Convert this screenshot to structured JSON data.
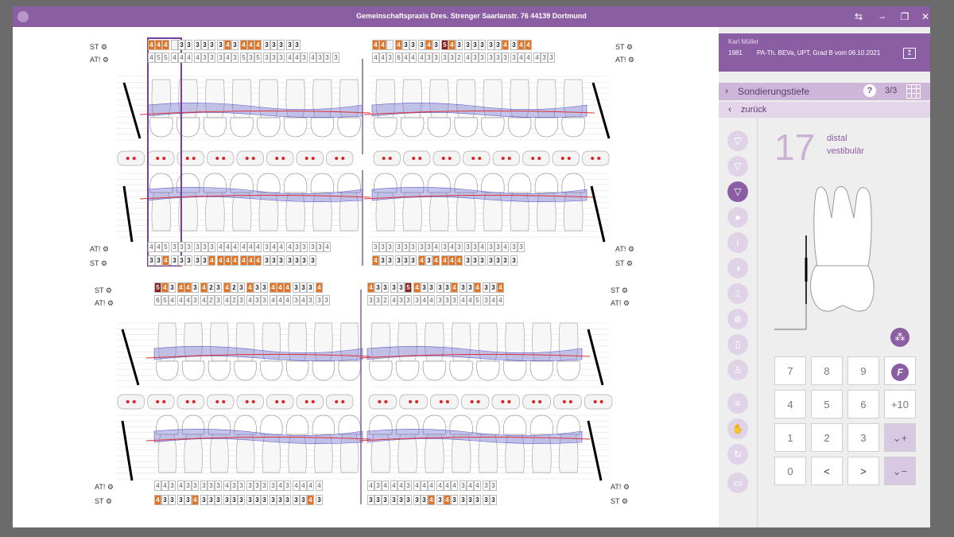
{
  "titlebar": {
    "title": "Gemeinschaftspraxis Dres. Strenger Saarlanstr. 76 44139 Dortmund",
    "colors": {
      "accent": "#8b5ea3"
    },
    "icons": [
      "monitor-switch-icon",
      "minimize-icon",
      "restore-icon",
      "close-icon"
    ]
  },
  "chart": {
    "labels": {
      "st": "ST",
      "at": "AT!"
    },
    "upper": {
      "st_values": [
        "4",
        "4",
        "4",
        "",
        "3",
        "3",
        "3",
        "3",
        "3",
        "3",
        "4",
        "3",
        "4",
        "4",
        "4",
        "3",
        "3",
        "3",
        "3",
        "3",
        "4",
        "4",
        "",
        "4",
        "3",
        "3",
        "3",
        "4",
        "3",
        "5",
        "4",
        "3",
        "3",
        "3",
        "3",
        "3",
        "3",
        "4",
        "3",
        "4",
        "4"
      ],
      "at_values": [
        "4",
        "5",
        "5",
        "4",
        "4",
        "4",
        "4",
        "3",
        "3",
        "3",
        "4",
        "3",
        "5",
        "3",
        "5",
        "3",
        "3",
        "3",
        "4",
        "4",
        "3",
        "4",
        "3",
        "3",
        "3",
        "4",
        "4",
        "3",
        "6",
        "4",
        "4",
        "4",
        "3",
        "3",
        "3",
        "3",
        "2",
        "4",
        "3",
        "3",
        "3",
        "3",
        "3",
        "3",
        "4",
        "4",
        "4",
        "3",
        "3"
      ]
    },
    "lower_upper_rows": {
      "at_values": [
        "4",
        "4",
        "5",
        "3",
        "3",
        "3",
        "3",
        "3",
        "3",
        "4",
        "4",
        "4",
        "4",
        "4",
        "4",
        "3",
        "4",
        "4",
        "4",
        "3",
        "3",
        "3",
        "3",
        "4",
        "3",
        "3",
        "3",
        "3",
        "3",
        "3",
        "3",
        "3",
        "4",
        "3",
        "4",
        "3",
        "3",
        "3",
        "4",
        "3",
        "3",
        "4",
        "3",
        "3"
      ],
      "st_values": [
        "3",
        "3",
        "4",
        "3",
        "3",
        "3",
        "3",
        "3",
        "4",
        "4",
        "4",
        "4",
        "4",
        "4",
        "4",
        "3",
        "3",
        "3",
        "3",
        "3",
        "3",
        "3",
        "4",
        "3",
        "3",
        "3",
        "3",
        "3",
        "4",
        "3",
        "4",
        "4",
        "4",
        "4",
        "3",
        "3",
        "3",
        "3",
        "3",
        "3",
        "3"
      ]
    },
    "lower": {
      "st_values": [
        "5",
        "4",
        "3",
        "4",
        "4",
        "3",
        "4",
        "2",
        "3",
        "4",
        "2",
        "3",
        "4",
        "3",
        "3",
        "4",
        "4",
        "4",
        "3",
        "3",
        "3",
        "4",
        "4",
        "3",
        "3",
        "3",
        "3",
        "5",
        "4",
        "3",
        "3",
        "3",
        "3",
        "4",
        "3",
        "3",
        "4",
        "3",
        "3",
        "4"
      ],
      "at_values": [
        "6",
        "5",
        "4",
        "4",
        "4",
        "3",
        "4",
        "2",
        "3",
        "4",
        "2",
        "3",
        "4",
        "3",
        "3",
        "4",
        "4",
        "4",
        "3",
        "4",
        "3",
        "3",
        "3",
        "3",
        "3",
        "2",
        "4",
        "3",
        "3",
        "3",
        "4",
        "4",
        "3",
        "3",
        "3",
        "4",
        "4",
        "5",
        "3",
        "4",
        "4"
      ]
    },
    "lower_bottom": {
      "at_values": [
        "4",
        "4",
        "3",
        "4",
        "3",
        "3",
        "3",
        "3",
        "3",
        "4",
        "3",
        "3",
        "3",
        "3",
        "3",
        "3",
        "4",
        "3",
        "4",
        "4",
        "4",
        "4",
        "4",
        "3",
        "4",
        "4",
        "4",
        "3",
        "4",
        "4",
        "4",
        "4",
        "4",
        "4",
        "3",
        "4",
        "4",
        "3",
        "3"
      ],
      "st_values": [
        "4",
        "3",
        "3",
        "3",
        "3",
        "4",
        "3",
        "3",
        "3",
        "3",
        "3",
        "3",
        "3",
        "3",
        "3",
        "3",
        "3",
        "3",
        "3",
        "3",
        "4",
        "3",
        "3",
        "3",
        "3",
        "3",
        "3",
        "3",
        "3",
        "3",
        "4",
        "3",
        "4",
        "3",
        "3",
        "3",
        "3",
        "3",
        "3"
      ]
    }
  },
  "panel": {
    "patient": {
      "name": "Karl Müller",
      "birth": "1981",
      "info": "PA-Th. BEVa, UPT, Grad B vom 06.10.2021"
    },
    "section": {
      "title": "Sondierungstiefe",
      "page": "3/3",
      "back": "zurück"
    },
    "tooth": {
      "number": "17",
      "side1": "distal",
      "side2": "vestibulär"
    },
    "keypad": [
      "7",
      "8",
      "9",
      "4",
      "5",
      "6",
      "+10",
      "1",
      "2",
      "3",
      "0",
      "<",
      ">"
    ],
    "colors": {
      "panel_bg": "#eeeeee",
      "accent": "#8b5ea3",
      "soft": "#cdb6d8"
    }
  }
}
